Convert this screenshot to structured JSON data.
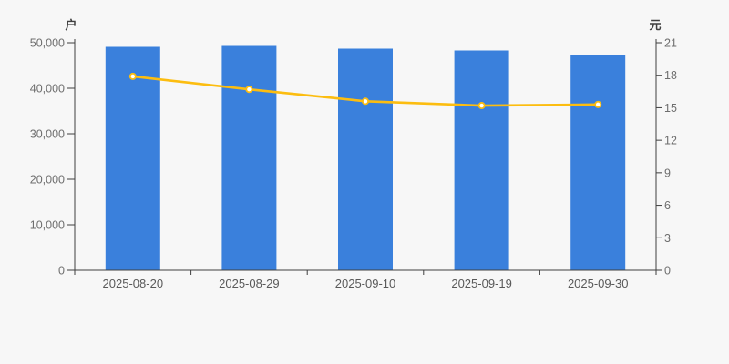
{
  "chart_data": {
    "type": "combo",
    "title": "",
    "categories": [
      "2025-08-20",
      "2025-08-29",
      "2025-09-10",
      "2025-09-19",
      "2025-09-30"
    ],
    "series": [
      {
        "id": "bar-series",
        "type": "bar",
        "axis": "left",
        "values": [
          49100,
          49300,
          48700,
          48300,
          47400
        ],
        "color": "#3a80dc"
      },
      {
        "id": "line-series",
        "type": "line",
        "axis": "right",
        "values": [
          17.9,
          16.7,
          15.6,
          15.2,
          15.3
        ],
        "color": "#fcbd10",
        "point_fill": "#ffffff"
      }
    ],
    "left_axis": {
      "unit": "户",
      "min": 0,
      "max": 50000,
      "tick_values": [
        0,
        10000,
        20000,
        30000,
        40000,
        50000
      ],
      "tick_labels": [
        "0",
        "10,000",
        "20,000",
        "30,000",
        "40,000",
        "50,000"
      ]
    },
    "right_axis": {
      "unit": "元",
      "min": 0,
      "max": 21,
      "tick_values": [
        0,
        3,
        6,
        9,
        12,
        15,
        18,
        21
      ],
      "tick_labels": [
        "0",
        "3",
        "6",
        "9",
        "12",
        "15",
        "18",
        "21"
      ]
    },
    "grid": false,
    "legend": null
  },
  "colors": {
    "background": "#f7f7f7",
    "axis_line": "#3f3f3f",
    "tick_label": "#6e6e6e",
    "date_label": "#595959",
    "unit_label": "#404040"
  }
}
